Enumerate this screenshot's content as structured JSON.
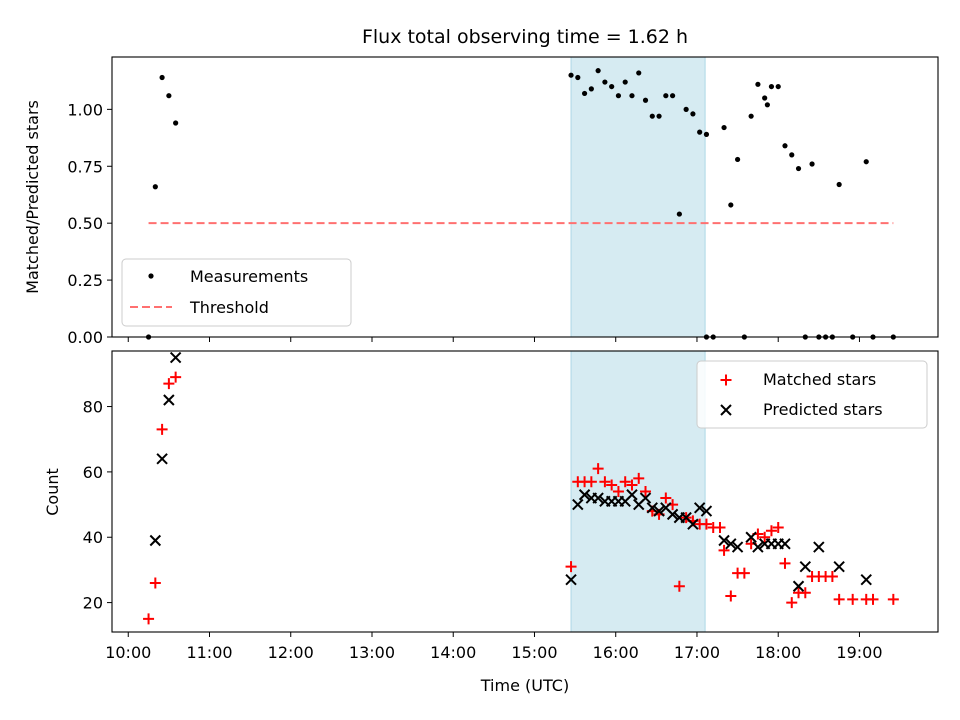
{
  "chart_data": [
    {
      "panel": "top",
      "type": "scatter",
      "title": "Flux total observing time = 1.62 h",
      "ylabel": "Matched/Predicted stars",
      "ylim": [
        0,
        1.23
      ],
      "yticks": [
        0.0,
        0.25,
        0.5,
        0.75,
        1.0
      ],
      "ytick_labels": [
        "0.00",
        "0.25",
        "0.50",
        "0.75",
        "1.00"
      ],
      "shaded_span": {
        "start": "15:27",
        "end": "17:06",
        "color": "#add8e6"
      },
      "legend": {
        "position": "lower-left",
        "entries": [
          "Measurements",
          "Threshold"
        ]
      },
      "series": [
        {
          "name": "Measurements",
          "marker": "dot",
          "color": "#000000",
          "points": [
            [
              "10:15",
              0.0
            ],
            [
              "10:20",
              0.66
            ],
            [
              "10:25",
              1.14
            ],
            [
              "10:30",
              1.06
            ],
            [
              "10:35",
              0.94
            ],
            [
              "15:27",
              1.15
            ],
            [
              "15:32",
              1.14
            ],
            [
              "15:37",
              1.07
            ],
            [
              "15:42",
              1.09
            ],
            [
              "15:47",
              1.17
            ],
            [
              "15:52",
              1.12
            ],
            [
              "15:57",
              1.1
            ],
            [
              "16:02",
              1.06
            ],
            [
              "16:07",
              1.12
            ],
            [
              "16:12",
              1.06
            ],
            [
              "16:17",
              1.16
            ],
            [
              "16:22",
              1.04
            ],
            [
              "16:27",
              0.97
            ],
            [
              "16:32",
              0.97
            ],
            [
              "16:37",
              1.06
            ],
            [
              "16:42",
              1.06
            ],
            [
              "16:47",
              0.54
            ],
            [
              "16:52",
              1.0
            ],
            [
              "16:57",
              0.98
            ],
            [
              "17:02",
              0.9
            ],
            [
              "17:07",
              0.89
            ],
            [
              "17:07",
              0.0
            ],
            [
              "17:12",
              0.0
            ],
            [
              "17:20",
              0.92
            ],
            [
              "17:25",
              0.58
            ],
            [
              "17:30",
              0.78
            ],
            [
              "17:35",
              0.0
            ],
            [
              "17:40",
              0.97
            ],
            [
              "17:45",
              1.11
            ],
            [
              "17:50",
              1.05
            ],
            [
              "17:52",
              1.02
            ],
            [
              "17:55",
              1.1
            ],
            [
              "18:00",
              1.1
            ],
            [
              "18:05",
              0.84
            ],
            [
              "18:10",
              0.8
            ],
            [
              "18:15",
              0.74
            ],
            [
              "18:20",
              0.0
            ],
            [
              "18:25",
              0.76
            ],
            [
              "18:30",
              0.0
            ],
            [
              "18:35",
              0.0
            ],
            [
              "18:40",
              0.0
            ],
            [
              "18:45",
              0.67
            ],
            [
              "18:55",
              0.0
            ],
            [
              "19:05",
              0.77
            ],
            [
              "19:10",
              0.0
            ],
            [
              "19:25",
              0.0
            ]
          ]
        },
        {
          "name": "Threshold",
          "marker": "dashed-line",
          "color": "#ff7070",
          "points": [
            [
              "10:15",
              0.5
            ],
            [
              "19:25",
              0.5
            ]
          ]
        }
      ]
    },
    {
      "panel": "bottom",
      "type": "scatter",
      "xlabel": "Time (UTC)",
      "ylabel": "Count",
      "ylim": [
        11,
        97
      ],
      "yticks": [
        20,
        40,
        60,
        80
      ],
      "xlim": [
        "09:48",
        "19:58"
      ],
      "xticks": [
        "10:00",
        "11:00",
        "12:00",
        "13:00",
        "14:00",
        "15:00",
        "16:00",
        "17:00",
        "18:00",
        "19:00"
      ],
      "shaded_span": {
        "start": "15:27",
        "end": "17:06",
        "color": "#add8e6"
      },
      "legend": {
        "position": "top-right",
        "entries": [
          "Matched stars",
          "Predicted stars"
        ]
      },
      "series": [
        {
          "name": "Matched stars",
          "marker": "plus",
          "color": "#ff0000",
          "points": [
            [
              "10:15",
              15
            ],
            [
              "10:20",
              26
            ],
            [
              "10:25",
              73
            ],
            [
              "10:30",
              87
            ],
            [
              "10:35",
              89
            ],
            [
              "15:27",
              31
            ],
            [
              "15:32",
              57
            ],
            [
              "15:37",
              57
            ],
            [
              "15:42",
              57
            ],
            [
              "15:47",
              61
            ],
            [
              "15:52",
              57
            ],
            [
              "15:57",
              56
            ],
            [
              "16:02",
              54
            ],
            [
              "16:07",
              57
            ],
            [
              "16:12",
              56
            ],
            [
              "16:17",
              58
            ],
            [
              "16:22",
              54
            ],
            [
              "16:27",
              48
            ],
            [
              "16:32",
              47
            ],
            [
              "16:37",
              52
            ],
            [
              "16:42",
              50
            ],
            [
              "16:47",
              25
            ],
            [
              "16:52",
              46
            ],
            [
              "16:57",
              45
            ],
            [
              "17:02",
              44
            ],
            [
              "17:07",
              44
            ],
            [
              "17:12",
              43
            ],
            [
              "17:17",
              43
            ],
            [
              "17:20",
              36
            ],
            [
              "17:25",
              22
            ],
            [
              "17:30",
              29
            ],
            [
              "17:35",
              29
            ],
            [
              "17:40",
              38
            ],
            [
              "17:45",
              41
            ],
            [
              "17:50",
              40
            ],
            [
              "17:55",
              42
            ],
            [
              "18:00",
              43
            ],
            [
              "18:05",
              32
            ],
            [
              "18:10",
              20
            ],
            [
              "18:15",
              23
            ],
            [
              "18:20",
              23
            ],
            [
              "18:25",
              28
            ],
            [
              "18:30",
              28
            ],
            [
              "18:35",
              28
            ],
            [
              "18:40",
              28
            ],
            [
              "18:45",
              21
            ],
            [
              "18:55",
              21
            ],
            [
              "19:05",
              21
            ],
            [
              "19:10",
              21
            ],
            [
              "19:25",
              21
            ]
          ]
        },
        {
          "name": "Predicted stars",
          "marker": "x",
          "color": "#000000",
          "points": [
            [
              "10:20",
              39
            ],
            [
              "10:25",
              64
            ],
            [
              "10:30",
              82
            ],
            [
              "10:35",
              95
            ],
            [
              "15:27",
              27
            ],
            [
              "15:32",
              50
            ],
            [
              "15:37",
              53
            ],
            [
              "15:42",
              52
            ],
            [
              "15:47",
              52
            ],
            [
              "15:52",
              51
            ],
            [
              "15:57",
              51
            ],
            [
              "16:02",
              51
            ],
            [
              "16:07",
              51
            ],
            [
              "16:12",
              53
            ],
            [
              "16:17",
              50
            ],
            [
              "16:22",
              52
            ],
            [
              "16:27",
              49
            ],
            [
              "16:32",
              48
            ],
            [
              "16:37",
              49
            ],
            [
              "16:42",
              47
            ],
            [
              "16:47",
              46
            ],
            [
              "16:52",
              46
            ],
            [
              "16:57",
              44
            ],
            [
              "17:02",
              49
            ],
            [
              "17:07",
              48
            ],
            [
              "17:20",
              39
            ],
            [
              "17:25",
              38
            ],
            [
              "17:30",
              37
            ],
            [
              "17:40",
              40
            ],
            [
              "17:45",
              37
            ],
            [
              "17:50",
              38
            ],
            [
              "17:55",
              38
            ],
            [
              "18:00",
              38
            ],
            [
              "18:05",
              38
            ],
            [
              "18:15",
              25
            ],
            [
              "18:20",
              31
            ],
            [
              "18:30",
              37
            ],
            [
              "18:45",
              31
            ],
            [
              "19:05",
              27
            ]
          ]
        }
      ]
    }
  ]
}
